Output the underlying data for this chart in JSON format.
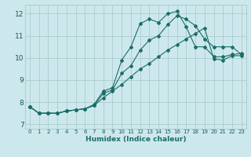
{
  "xlabel": "Humidex (Indice chaleur)",
  "bg_color": "#cde8ec",
  "grid_color": "#aacccc",
  "line_color": "#1a6e6a",
  "xlim": [
    -0.5,
    23.5
  ],
  "ylim": [
    6.8,
    12.4
  ],
  "xticks": [
    0,
    1,
    2,
    3,
    4,
    5,
    6,
    7,
    8,
    9,
    10,
    11,
    12,
    13,
    14,
    15,
    16,
    17,
    18,
    19,
    20,
    21,
    22,
    23
  ],
  "yticks": [
    7,
    8,
    9,
    10,
    11,
    12
  ],
  "curve1_x": [
    0,
    1,
    2,
    3,
    4,
    5,
    6,
    7,
    8,
    9,
    10,
    11,
    12,
    13,
    14,
    15,
    16,
    17,
    18,
    19,
    20,
    21,
    22,
    23
  ],
  "curve1_y": [
    7.8,
    7.5,
    7.5,
    7.5,
    7.6,
    7.65,
    7.7,
    7.9,
    8.5,
    8.65,
    9.9,
    10.5,
    11.55,
    11.75,
    11.6,
    12.0,
    12.1,
    11.4,
    10.5,
    10.5,
    10.05,
    10.05,
    10.15,
    10.2
  ],
  "curve2_x": [
    0,
    1,
    2,
    3,
    4,
    5,
    6,
    7,
    8,
    9,
    10,
    11,
    12,
    13,
    14,
    15,
    16,
    17,
    18,
    19,
    20,
    21,
    22,
    23
  ],
  "curve2_y": [
    7.8,
    7.5,
    7.5,
    7.5,
    7.6,
    7.65,
    7.7,
    7.85,
    8.4,
    8.55,
    9.3,
    9.65,
    10.35,
    10.8,
    11.0,
    11.5,
    11.9,
    11.75,
    11.45,
    10.85,
    10.5,
    10.5,
    10.5,
    10.15
  ],
  "curve3_x": [
    0,
    1,
    2,
    3,
    4,
    5,
    6,
    7,
    8,
    9,
    10,
    11,
    12,
    13,
    14,
    15,
    16,
    17,
    18,
    19,
    20,
    21,
    22,
    23
  ],
  "curve3_y": [
    7.8,
    7.5,
    7.5,
    7.5,
    7.6,
    7.65,
    7.7,
    7.85,
    8.2,
    8.5,
    8.8,
    9.15,
    9.5,
    9.75,
    10.05,
    10.35,
    10.6,
    10.85,
    11.1,
    11.35,
    9.95,
    9.9,
    10.1,
    10.1
  ]
}
